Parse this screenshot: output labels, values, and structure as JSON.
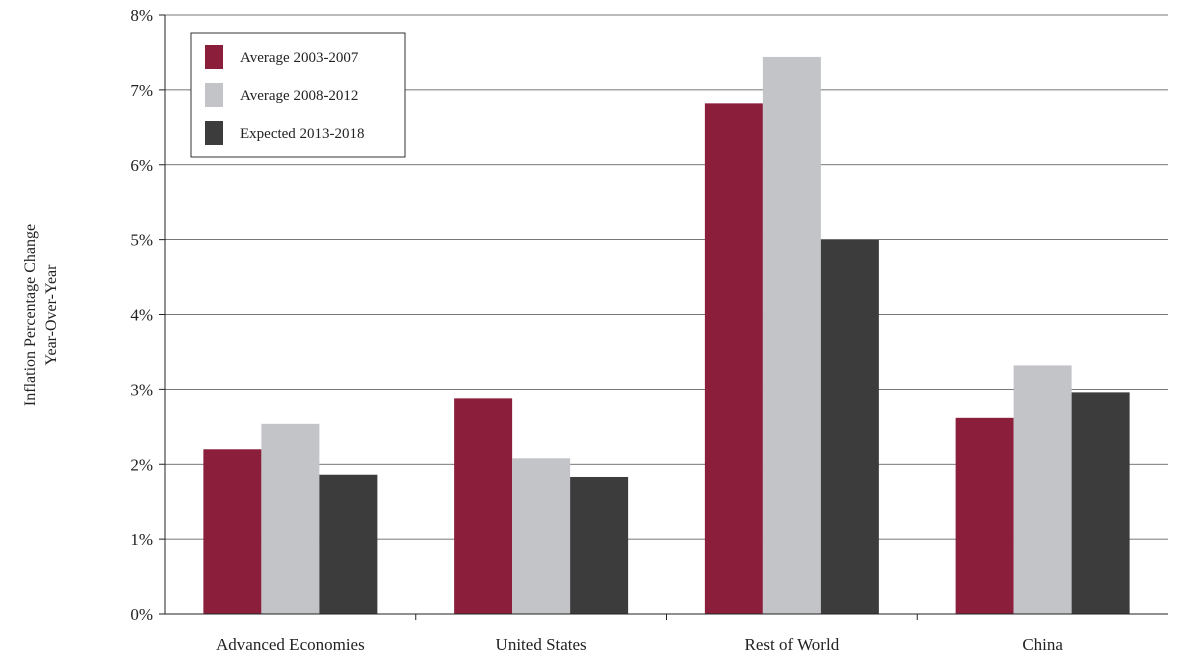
{
  "chart_data": {
    "type": "bar",
    "title": "",
    "xlabel": "",
    "ylabel": [
      "Inflation Percentage Change",
      "Year-Over-Year"
    ],
    "ylim": [
      0,
      8
    ],
    "y_ticks": [
      "0%",
      "1%",
      "2%",
      "3%",
      "4%",
      "5%",
      "6%",
      "7%",
      "8%"
    ],
    "grid": true,
    "legend_position": "top-left",
    "categories": [
      "Advanced Economies",
      "United States",
      "Rest of World",
      "China"
    ],
    "series": [
      {
        "name": "Average 2003-2007",
        "color": "#8b1e3b",
        "values": [
          2.2,
          2.88,
          6.82,
          2.62
        ]
      },
      {
        "name": "Average 2008-2012",
        "color": "#c2c4c7",
        "values": [
          2.54,
          2.08,
          7.44,
          3.32
        ]
      },
      {
        "name": "Expected 2013-2018",
        "color": "#3c3c3c",
        "values": [
          1.86,
          1.83,
          5.0,
          2.96
        ]
      }
    ]
  }
}
